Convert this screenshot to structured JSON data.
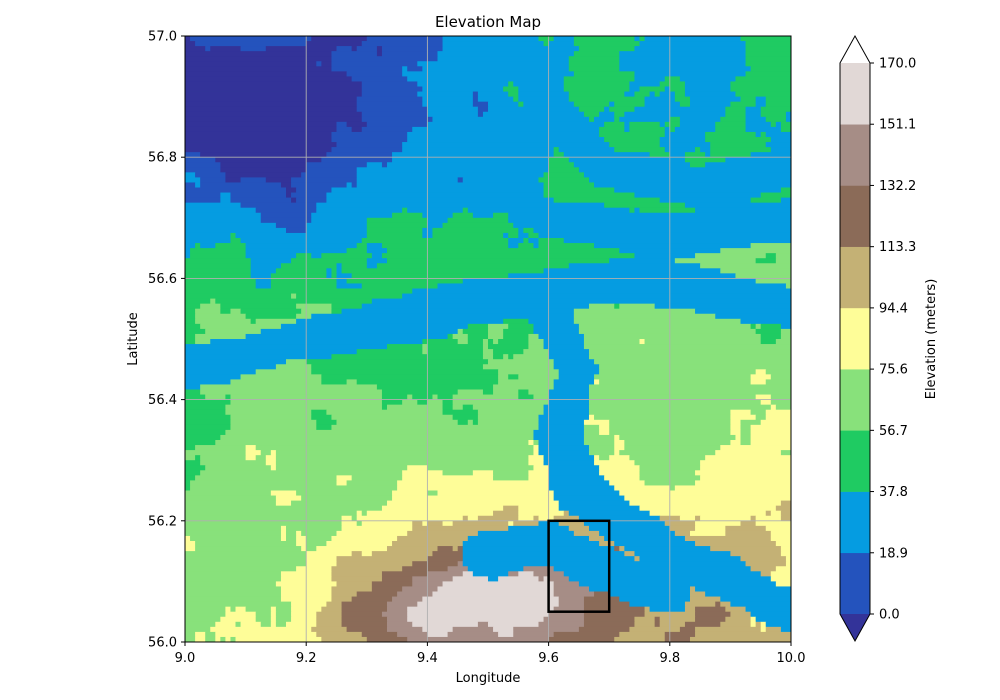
{
  "map": {
    "title": "Elevation Map",
    "xlabel": "Longitude",
    "ylabel": "Latitude",
    "xlim": [
      9.0,
      10.0
    ],
    "ylim": [
      56.0,
      57.0
    ],
    "xticks": [
      "9.0",
      "9.2",
      "9.4",
      "9.6",
      "9.8",
      "10.0"
    ],
    "yticks": [
      "56.0",
      "56.2",
      "56.4",
      "56.6",
      "56.8",
      "57.0"
    ],
    "grid": true,
    "highlight_box": {
      "lon": [
        9.6,
        9.7
      ],
      "lat": [
        56.05,
        56.2
      ],
      "color": "#000000"
    }
  },
  "colorbar": {
    "label": "Elevation (meters)",
    "levels": [
      "0.0",
      "18.9",
      "37.8",
      "56.7",
      "75.6",
      "94.4",
      "113.3",
      "132.2",
      "151.1",
      "170.0"
    ],
    "colors": [
      "#2453bd",
      "#059ce1",
      "#1fcb62",
      "#88e17b",
      "#fefd98",
      "#c4b175",
      "#8b6b58",
      "#a68d86",
      "#e1d8d6"
    ],
    "under_color": "#333399",
    "over_color": "#ffffff"
  }
}
